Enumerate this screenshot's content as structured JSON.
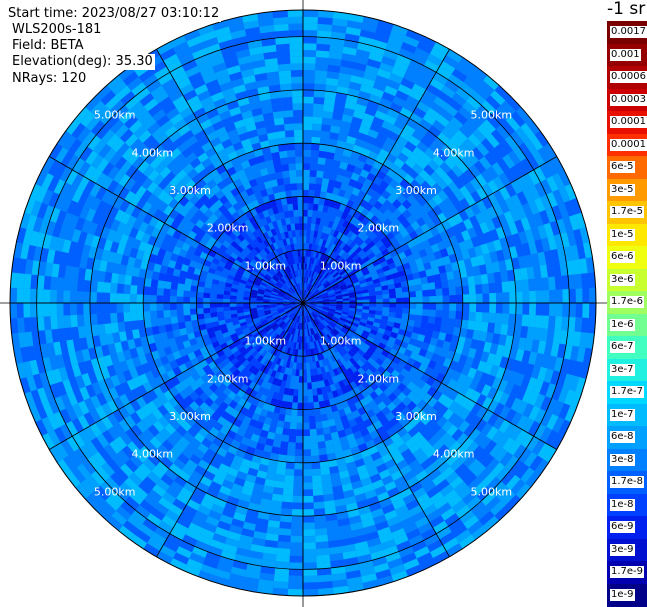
{
  "header": {
    "start_time": "Start time: 2023/08/27 03:10:12",
    "instrument": "WLS200s-181",
    "field": "Field: BETA",
    "elevation": "Elevation(deg): 35.30",
    "nrays": "NRays: 120"
  },
  "colorbar": {
    "unit": "-1 sr",
    "labels": [
      "0.0017",
      "0.001",
      "0.0006",
      "0.0003",
      "0.00017",
      "0.0001",
      "6e-5",
      "3e-5",
      "1.7e-5",
      "1e-5",
      "6e-6",
      "3e-6",
      "1.7e-6",
      "1e-6",
      "6e-7",
      "3e-7",
      "1.7e-7",
      "1e-7",
      "6e-8",
      "3e-8",
      "1.7e-8",
      "1e-8",
      "6e-9",
      "3e-9",
      "1.7e-9",
      "1e-9"
    ],
    "colors": [
      "#7a0000",
      "#940000",
      "#b00000",
      "#cc0000",
      "#e81000",
      "#ff3000",
      "#ff6a00",
      "#ff9a00",
      "#ffc400",
      "#ffe800",
      "#f0ff10",
      "#c8ff30",
      "#a0ff60",
      "#70ff90",
      "#40ffc0",
      "#20f0e0",
      "#00d8ff",
      "#00bcff",
      "#00a0ff",
      "#0080ff",
      "#0060ff",
      "#0040ff",
      "#0020f0",
      "#0010d0",
      "#0000b0",
      "#000088"
    ]
  },
  "chart_data": {
    "type": "heatmap",
    "projection": "polar PPI",
    "field": "BETA",
    "nrays": 120,
    "elevation_deg": 35.3,
    "range_rings_km": [
      1,
      2,
      3,
      4,
      5
    ],
    "range_ring_labels": [
      "1.00km",
      "2.00km",
      "3.00km",
      "4.00km",
      "5.00km"
    ],
    "max_range_km": 5.5,
    "radial_spokes_deg": [
      0,
      30,
      60,
      90,
      120,
      150,
      180,
      210,
      240,
      270,
      300,
      330
    ],
    "value_range": [
      1e-09,
      0.0017
    ],
    "dominant_values_by_range": [
      {
        "range_km": [
          0,
          1
        ],
        "beta": "1e-8"
      },
      {
        "range_km": [
          1,
          2
        ],
        "beta": "1.7e-8"
      },
      {
        "range_km": [
          2,
          3
        ],
        "beta": "3e-8"
      },
      {
        "range_km": [
          3,
          5.5
        ],
        "beta": "6e-8"
      }
    ],
    "scale": "log"
  }
}
